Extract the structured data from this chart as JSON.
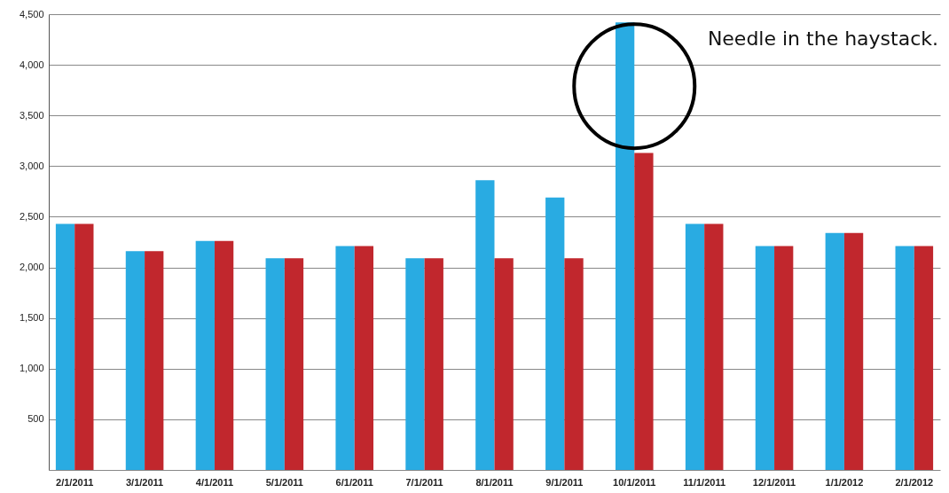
{
  "chart_data": {
    "type": "bar",
    "categories": [
      "2/1/2011",
      "3/1/2011",
      "4/1/2011",
      "5/1/2011",
      "6/1/2011",
      "7/1/2011",
      "8/1/2011",
      "9/1/2011",
      "10/1/2011",
      "11/1/2011",
      "12/1/2011",
      "1/1/2012",
      "2/1/2012"
    ],
    "series": [
      {
        "color": "#29abe2",
        "values": [
          2430,
          2160,
          2260,
          2090,
          2210,
          2090,
          2860,
          2690,
          4420,
          2430,
          2210,
          2340,
          2210
        ]
      },
      {
        "color": "#c1272d",
        "values": [
          2430,
          2160,
          2260,
          2090,
          2210,
          2090,
          2090,
          2090,
          3130,
          2430,
          2210,
          2340,
          2210
        ]
      }
    ],
    "ylim": [
      0,
      4500
    ],
    "yticks": [
      {
        "value": 0,
        "label": null
      },
      {
        "value": 500,
        "label": "500"
      },
      {
        "value": 1000,
        "label": "1,000"
      },
      {
        "value": 1500,
        "label": "1,500"
      },
      {
        "value": 2000,
        "label": "2,000"
      },
      {
        "value": 2500,
        "label": "2,500"
      },
      {
        "value": 3000,
        "label": "3,000"
      },
      {
        "value": 3500,
        "label": "3,500"
      },
      {
        "value": 4000,
        "label": "4,000"
      },
      {
        "value": 4500,
        "label": "4,500"
      }
    ],
    "grid": "y",
    "annotations": [
      "Needle in the haystack."
    ]
  }
}
